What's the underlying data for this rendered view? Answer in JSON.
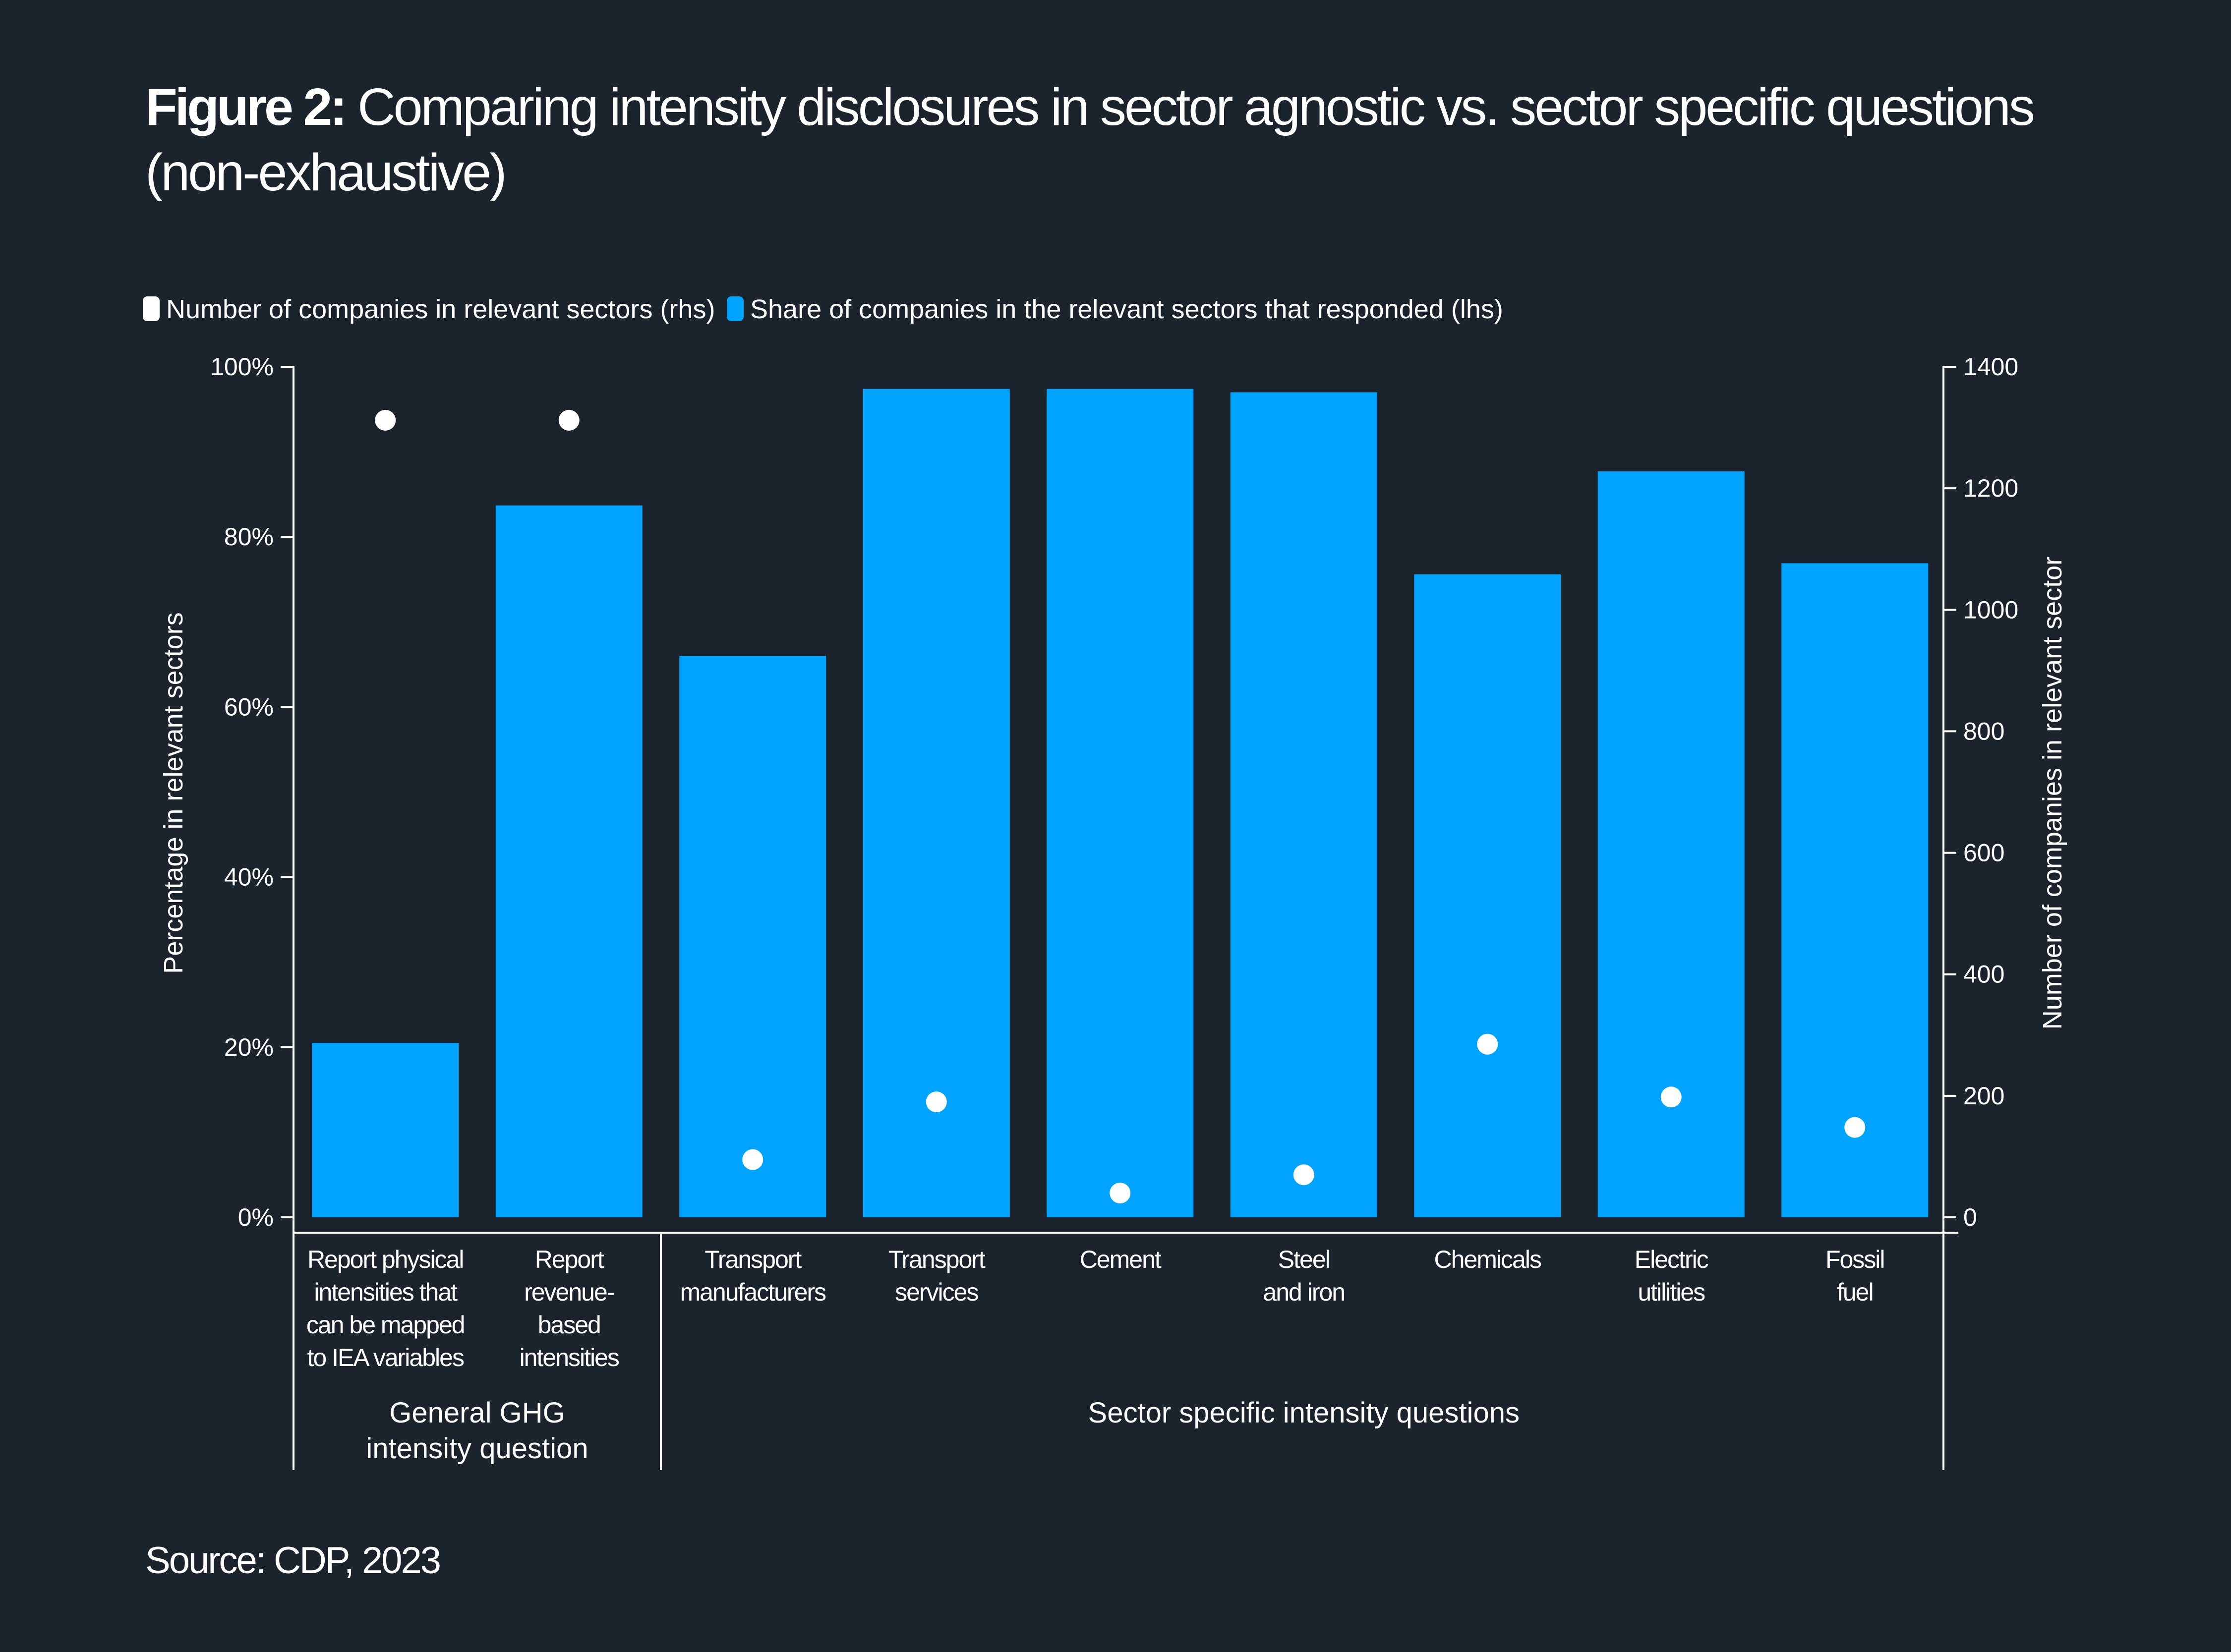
{
  "title": {
    "prefix": "Figure 2:",
    "text": "Comparing intensity disclosures in sector agnostic vs. sector specific questions (non-exhaustive)"
  },
  "source": "Source: CDP, 2023",
  "colors": {
    "background": "#1b232d",
    "bar": "#00a3ff",
    "dot": "#ffffff",
    "axis": "#ffffff"
  },
  "chart_data": {
    "type": "bar",
    "title": "Comparing intensity disclosures in sector agnostic vs. sector specific questions (non-exhaustive)",
    "legend": [
      {
        "label": "Number of companies in relevant sectors (rhs)",
        "kind": "dot",
        "color": "#ffffff"
      },
      {
        "label": "Share of companies in the relevant sectors that responded (lhs)",
        "kind": "bar",
        "color": "#00a3ff"
      }
    ],
    "categories": [
      [
        "Report physical",
        "intensities that",
        "can be mapped",
        "to IEA variables"
      ],
      [
        "Report",
        "revenue-",
        "based",
        "intensities"
      ],
      [
        "Transport",
        "manufacturers"
      ],
      [
        "Transport",
        "services"
      ],
      [
        "Cement"
      ],
      [
        "Steel",
        "and iron"
      ],
      [
        "Chemicals"
      ],
      [
        "Electric",
        "utilities"
      ],
      [
        "Fossil",
        "fuel"
      ]
    ],
    "groups": [
      {
        "label_lines": [
          "General GHG",
          "intensity question"
        ],
        "start": 0,
        "end": 1
      },
      {
        "label_lines": [
          "Sector specific intensity questions"
        ],
        "start": 2,
        "end": 8
      }
    ],
    "series": [
      {
        "name": "Share of companies in the relevant sectors that responded (lhs)",
        "axis": "left",
        "kind": "bar",
        "values": [
          20.5,
          83.7,
          66.0,
          97.4,
          97.4,
          97.0,
          75.6,
          87.7,
          76.9
        ]
      },
      {
        "name": "Number of companies in relevant sectors (rhs)",
        "axis": "right",
        "kind": "scatter",
        "values": [
          1312,
          1312,
          95,
          190,
          40,
          70,
          285,
          198,
          148
        ]
      }
    ],
    "left_axis": {
      "label": "Percentage in relevant sectors",
      "min": 0,
      "max": 100,
      "ticks": [
        0,
        20,
        40,
        60,
        80,
        100
      ],
      "tick_labels": [
        "0%",
        "20%",
        "40%",
        "60%",
        "80%",
        "100%"
      ]
    },
    "right_axis": {
      "label": "Number of companies in relevant sector",
      "min": 0,
      "max": 1400,
      "ticks": [
        0,
        200,
        400,
        600,
        800,
        1000,
        1200,
        1400
      ],
      "tick_labels": [
        "0",
        "200",
        "400",
        "600",
        "800",
        "1000",
        "1200",
        "1400"
      ]
    },
    "grid": false
  }
}
